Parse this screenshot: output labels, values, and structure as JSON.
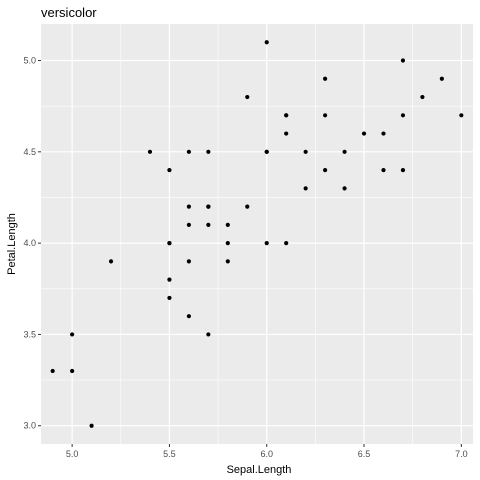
{
  "chart_data": {
    "type": "scatter",
    "title": "versicolor",
    "xlabel": "Sepal.Length",
    "ylabel": "Petal.Length",
    "xlim": [
      4.84,
      7.06
    ],
    "ylim": [
      2.9,
      5.2
    ],
    "x_ticks": [
      5.0,
      5.5,
      6.0,
      6.5,
      7.0
    ],
    "x_tick_labels": [
      "5.0",
      "5.5",
      "6.0",
      "6.5",
      "7.0"
    ],
    "y_ticks": [
      3.0,
      3.5,
      4.0,
      4.5,
      5.0
    ],
    "y_tick_labels": [
      "3.0",
      "3.5",
      "4.0",
      "4.5",
      "5.0"
    ],
    "grid": true,
    "colors": {
      "panel": "#ebebeb",
      "grid": "#ffffff",
      "point": "#000000"
    },
    "points": [
      {
        "x": 7.0,
        "y": 4.7
      },
      {
        "x": 6.4,
        "y": 4.5
      },
      {
        "x": 6.9,
        "y": 4.9
      },
      {
        "x": 5.5,
        "y": 4.0
      },
      {
        "x": 6.5,
        "y": 4.6
      },
      {
        "x": 5.7,
        "y": 4.5
      },
      {
        "x": 6.3,
        "y": 4.7
      },
      {
        "x": 4.9,
        "y": 3.3
      },
      {
        "x": 6.6,
        "y": 4.6
      },
      {
        "x": 5.2,
        "y": 3.9
      },
      {
        "x": 5.0,
        "y": 3.5
      },
      {
        "x": 5.9,
        "y": 4.2
      },
      {
        "x": 6.0,
        "y": 4.0
      },
      {
        "x": 6.1,
        "y": 4.7
      },
      {
        "x": 5.6,
        "y": 3.6
      },
      {
        "x": 6.7,
        "y": 4.4
      },
      {
        "x": 5.6,
        "y": 4.5
      },
      {
        "x": 5.8,
        "y": 4.1
      },
      {
        "x": 6.2,
        "y": 4.5
      },
      {
        "x": 5.6,
        "y": 3.9
      },
      {
        "x": 5.9,
        "y": 4.8
      },
      {
        "x": 6.1,
        "y": 4.0
      },
      {
        "x": 6.3,
        "y": 4.9
      },
      {
        "x": 6.1,
        "y": 4.7
      },
      {
        "x": 6.4,
        "y": 4.3
      },
      {
        "x": 6.6,
        "y": 4.4
      },
      {
        "x": 6.8,
        "y": 4.8
      },
      {
        "x": 6.7,
        "y": 5.0
      },
      {
        "x": 6.0,
        "y": 4.5
      },
      {
        "x": 5.7,
        "y": 3.5
      },
      {
        "x": 5.5,
        "y": 3.8
      },
      {
        "x": 5.5,
        "y": 3.7
      },
      {
        "x": 5.8,
        "y": 3.9
      },
      {
        "x": 6.0,
        "y": 5.1
      },
      {
        "x": 5.4,
        "y": 4.5
      },
      {
        "x": 6.0,
        "y": 4.5
      },
      {
        "x": 6.7,
        "y": 4.7
      },
      {
        "x": 6.3,
        "y": 4.4
      },
      {
        "x": 5.6,
        "y": 4.1
      },
      {
        "x": 5.5,
        "y": 4.0
      },
      {
        "x": 5.5,
        "y": 4.4
      },
      {
        "x": 6.1,
        "y": 4.6
      },
      {
        "x": 5.8,
        "y": 4.0
      },
      {
        "x": 5.0,
        "y": 3.3
      },
      {
        "x": 5.6,
        "y": 4.2
      },
      {
        "x": 5.7,
        "y": 4.2
      },
      {
        "x": 5.7,
        "y": 4.2
      },
      {
        "x": 6.2,
        "y": 4.3
      },
      {
        "x": 5.1,
        "y": 3.0
      },
      {
        "x": 5.7,
        "y": 4.1
      }
    ]
  }
}
